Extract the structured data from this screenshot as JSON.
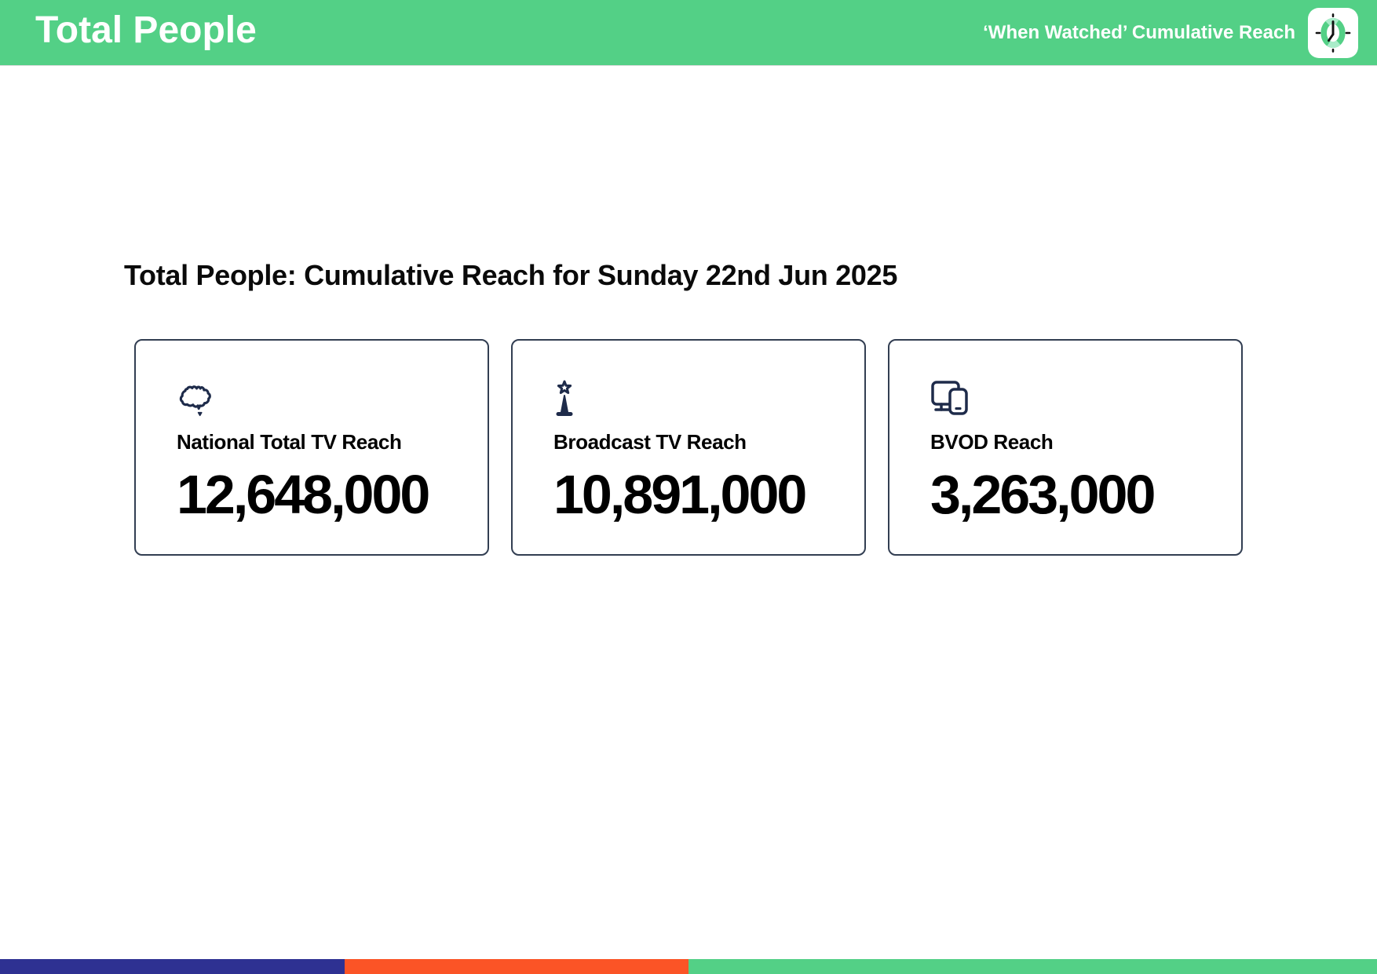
{
  "header": {
    "title": "Total People",
    "right_label": "‘When Watched’ Cumulative Reach",
    "background_color": "#53d086",
    "logo_icon": "clock-icon"
  },
  "main": {
    "heading": "Total People: Cumulative Reach for Sunday 22nd Jun 2025",
    "cards": [
      {
        "icon": "australia-map-icon",
        "label": "National Total TV Reach",
        "value": "12,648,000"
      },
      {
        "icon": "broadcast-tower-icon",
        "label": "Broadcast TV Reach",
        "value": "10,891,000"
      },
      {
        "icon": "devices-icon",
        "label": "BVOD Reach",
        "value": "3,263,000"
      }
    ]
  },
  "footer": {
    "segments": [
      {
        "name": "indigo-segment",
        "color": "#2e3192",
        "width_pct": "25%"
      },
      {
        "name": "orange-segment",
        "color": "#fb5426",
        "width_pct": "25%"
      },
      {
        "name": "green-segment",
        "color": "#53d086",
        "width_pct": "50%"
      }
    ]
  },
  "colors": {
    "accent_green": "#53d086",
    "icon_navy": "#1e2b4a",
    "card_border": "#323e52"
  }
}
